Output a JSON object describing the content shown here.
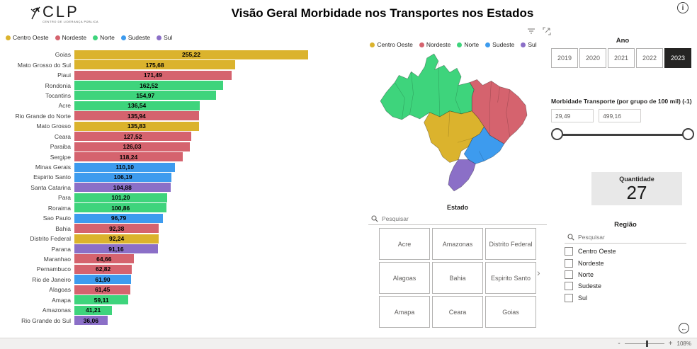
{
  "header": {
    "logo_brand": "CLP",
    "logo_subtitle": "CENTRO DE LIDERANÇA PÚBLICA",
    "title": "Visão Geral Morbidade nos Transportes nos Estados",
    "info_icon": "i"
  },
  "legend": {
    "items": [
      {
        "label": "Centro Oeste",
        "color": "#DBB32D"
      },
      {
        "label": "Nordeste",
        "color": "#D5636E"
      },
      {
        "label": "Norte",
        "color": "#3ED47C"
      },
      {
        "label": "Sudeste",
        "color": "#3D9BEE"
      },
      {
        "label": "Sul",
        "color": "#8B6FC7"
      }
    ]
  },
  "chart_data": {
    "type": "bar",
    "orientation": "horizontal",
    "title": "",
    "xlabel": "",
    "ylabel": "",
    "xlim": [
      0,
      255.22
    ],
    "grid": false,
    "legend_position": "top",
    "categories": [
      "Goias",
      "Mato Grosso do Sul",
      "Piaui",
      "Rondonia",
      "Tocantins",
      "Acre",
      "Rio Grande do Norte",
      "Mato Grosso",
      "Ceara",
      "Paraiba",
      "Sergipe",
      "Minas Gerais",
      "Espirito Santo",
      "Santa Catarina",
      "Para",
      "Roraima",
      "Sao Paulo",
      "Bahia",
      "Distrito Federal",
      "Parana",
      "Maranhao",
      "Pernambuco",
      "Rio de Janeiro",
      "Alagoas",
      "Amapa",
      "Amazonas",
      "Rio Grande do Sul"
    ],
    "values": [
      255.22,
      175.68,
      171.49,
      162.52,
      154.97,
      136.54,
      135.94,
      135.83,
      127.52,
      126.03,
      118.24,
      110.1,
      106.19,
      104.88,
      101.2,
      100.86,
      96.79,
      92.38,
      92.24,
      91.16,
      64.66,
      62.82,
      61.9,
      61.45,
      59.11,
      41.21,
      36.06
    ],
    "value_labels": [
      "255,22",
      "175,68",
      "171,49",
      "162,52",
      "154,97",
      "136,54",
      "135,94",
      "135,83",
      "127,52",
      "126,03",
      "118,24",
      "110,10",
      "106,19",
      "104,88",
      "101,20",
      "100,86",
      "96,79",
      "92,38",
      "92,24",
      "91,16",
      "64,66",
      "62,82",
      "61,90",
      "61,45",
      "59,11",
      "41,21",
      "36,06"
    ],
    "series_regions": [
      "Centro Oeste",
      "Centro Oeste",
      "Nordeste",
      "Norte",
      "Norte",
      "Norte",
      "Nordeste",
      "Centro Oeste",
      "Nordeste",
      "Nordeste",
      "Nordeste",
      "Sudeste",
      "Sudeste",
      "Sul",
      "Norte",
      "Norte",
      "Sudeste",
      "Nordeste",
      "Centro Oeste",
      "Sul",
      "Nordeste",
      "Nordeste",
      "Sudeste",
      "Nordeste",
      "Norte",
      "Norte",
      "Sul"
    ],
    "region_colors": {
      "Centro Oeste": "#DBB32D",
      "Nordeste": "#D5636E",
      "Norte": "#3ED47C",
      "Sudeste": "#3D9BEE",
      "Sul": "#8B6FC7"
    }
  },
  "map": {
    "region_colors": {
      "Centro Oeste": "#DBB32D",
      "Nordeste": "#D5636E",
      "Norte": "#3ED47C",
      "Sudeste": "#3D9BEE",
      "Sul": "#8B6FC7"
    }
  },
  "estado_slicer": {
    "title": "Estado",
    "search_placeholder": "Pesquisar",
    "buttons": [
      "Acre",
      "Amazonas",
      "Distrito Federal",
      "Alagoas",
      "Bahia",
      "Espirito Santo",
      "Amapa",
      "Ceara",
      "Goias"
    ],
    "more_icon": "›"
  },
  "ano": {
    "title": "Ano",
    "options": [
      "2019",
      "2020",
      "2021",
      "2022",
      "2023"
    ],
    "selected": "2023"
  },
  "slider": {
    "title": "Morbidade Transporte (por grupo de 100 mil) (-1)",
    "min_value": "29,49",
    "max_value": "499,16"
  },
  "quantidade": {
    "label": "Quantidade",
    "value": "27"
  },
  "regiao": {
    "title": "Região",
    "search_placeholder": "Pesquisar",
    "options": [
      "Centro Oeste",
      "Nordeste",
      "Norte",
      "Sudeste",
      "Sul"
    ]
  },
  "statusbar": {
    "minus": "-",
    "plus": "+",
    "zoom_level": "108%",
    "back_icon": "←"
  }
}
